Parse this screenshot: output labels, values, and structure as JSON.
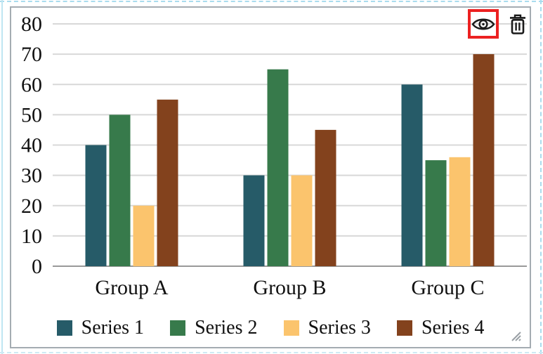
{
  "chart_data": {
    "type": "bar",
    "title": "",
    "xlabel": "",
    "ylabel": "",
    "categories": [
      "Group A",
      "Group B",
      "Group C"
    ],
    "series": [
      {
        "name": "Series 1",
        "color": "#265b68",
        "values": [
          40,
          30,
          60
        ]
      },
      {
        "name": "Series 2",
        "color": "#377a4b",
        "values": [
          50,
          65,
          35
        ]
      },
      {
        "name": "Series 3",
        "color": "#fbc46d",
        "values": [
          20,
          30,
          36
        ]
      },
      {
        "name": "Series 4",
        "color": "#83421d",
        "values": [
          55,
          45,
          70
        ]
      }
    ],
    "ylim": [
      0,
      80
    ],
    "yticks": [
      0,
      10,
      20,
      30,
      40,
      50,
      60,
      70,
      80
    ],
    "grid": true,
    "legend_position": "bottom"
  },
  "toolbar": {
    "icons": [
      "eye-icon",
      "trash-icon"
    ],
    "eye_label": "toggle visibility",
    "trash_label": "delete chart",
    "highlight_color": "#ec2121"
  },
  "colors": {
    "gridline": "#d8d8d8",
    "axis_line": "#999999",
    "widget_border": "#a4acb2",
    "icon": "#1a1a1a",
    "highlight": "#ec2121",
    "canvas_guide": "#a9dcee"
  },
  "resize_handle": "resize-grip-icon"
}
